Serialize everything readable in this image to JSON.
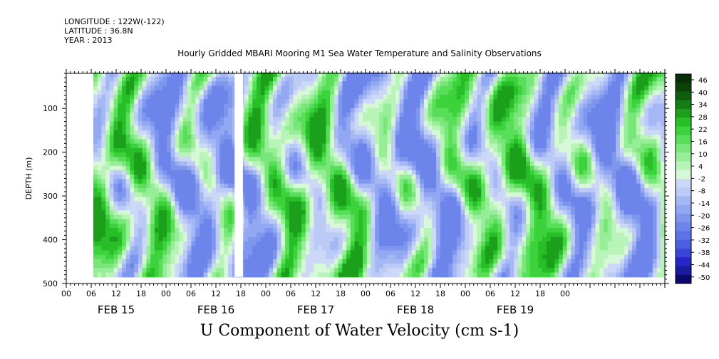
{
  "header": {
    "longitude": "LONGITUDE : 122W(-122)",
    "latitude": "LATITUDE : 36.8N",
    "year": "YEAR : 2013"
  },
  "chart_data": {
    "type": "heatmap",
    "title": "Hourly Gridded MBARI Mooring M1 Sea Water Temperature and Salinity Observations",
    "xlabel": "U Component of Water Velocity (cm s-1)",
    "ylabel": "DEPTH (m)",
    "x_tick_labels": [
      "00",
      "06",
      "12",
      "18",
      "00",
      "06",
      "12",
      "18",
      "00",
      "06",
      "12",
      "18",
      "00",
      "06",
      "12",
      "18",
      "00",
      "06",
      "12",
      "18",
      "00"
    ],
    "date_labels": [
      "FEB 15",
      "FEB 16",
      "FEB 17",
      "FEB 18",
      "FEB 19"
    ],
    "y_ticks": [
      100,
      200,
      300,
      400,
      500
    ],
    "ylim": [
      500,
      20
    ],
    "colorbar_labels": [
      "46",
      "40",
      "34",
      "28",
      "22",
      "16",
      "10",
      "4",
      "-2",
      "-8",
      "-14",
      "-20",
      "-26",
      "-32",
      "-38",
      "-44",
      "-50"
    ],
    "colorbar_range": [
      -50,
      50
    ],
    "colors": [
      "#0a0a6e",
      "#1a1aa0",
      "#2525c8",
      "#3a44d6",
      "#4a5ee0",
      "#5c72e6",
      "#6d84ea",
      "#7f96ee",
      "#92a8f2",
      "#a6b8f4",
      "#bccaf6",
      "#cdd8f8",
      "#d6f8d6",
      "#b8f4b8",
      "#98ee98",
      "#78e678",
      "#58de58",
      "#3cd23c",
      "#28be28",
      "#1ca01c",
      "#147e14",
      "#0e5e0e",
      "#0a420a",
      "#083008"
    ],
    "data_extent_x_hours": [
      6.5,
      144
    ],
    "gap_x_hours": [
      40.5,
      42.5
    ]
  }
}
